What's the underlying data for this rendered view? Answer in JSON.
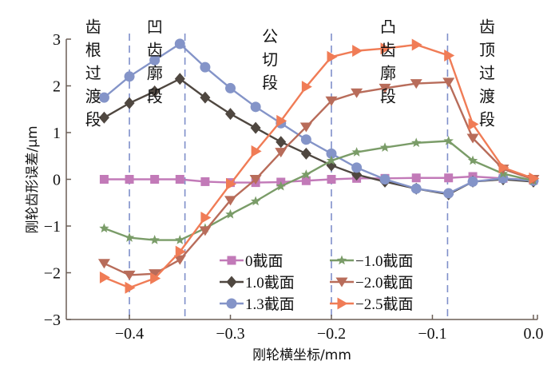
{
  "chart_data": {
    "type": "line",
    "title": "",
    "xlabel": "刚轮横坐标/mm",
    "ylabel": "刚轮齿形误差/μm",
    "xlim": [
      -0.4625,
      0.004
    ],
    "ylim": [
      -3,
      3
    ],
    "xticks": [
      -0.4,
      -0.3,
      -0.2,
      -0.1,
      0.0
    ],
    "xtick_labels": [
      "−0.4",
      "−0.3",
      "−0.2",
      "−0.1",
      "0.0"
    ],
    "yticks": [
      -3,
      -2,
      -1,
      0,
      1,
      2,
      3
    ],
    "ytick_labels": [
      "−3",
      "−2",
      "−1",
      "0",
      "1",
      "2",
      "3"
    ],
    "grid": false,
    "legend_placement": "bottom-center",
    "region_dividers": [
      -0.4,
      -0.345,
      -0.2,
      -0.085
    ],
    "region_labels": [
      {
        "text": "齿根过渡段",
        "x": -0.437,
        "y": 3.1
      },
      {
        "text": "凹齿廓段",
        "x": -0.376,
        "y": 3.1
      },
      {
        "text": "公切段",
        "x": -0.262,
        "y": 2.9
      },
      {
        "text": "凸齿廓段",
        "x": -0.145,
        "y": 3.1
      },
      {
        "text": "齿顶过渡段",
        "x": -0.047,
        "y": 3.1
      }
    ],
    "x": [
      -0.425,
      -0.4,
      -0.375,
      -0.35,
      -0.325,
      -0.3,
      -0.275,
      -0.25,
      -0.225,
      -0.2,
      -0.175,
      -0.147,
      -0.116,
      -0.084,
      -0.06,
      -0.03,
      0.0
    ],
    "series": [
      {
        "name": "0截面",
        "color": "#c27ab8",
        "marker": "square",
        "values": [
          0,
          0,
          0,
          0,
          -0.05,
          -0.07,
          -0.07,
          -0.06,
          -0.03,
          0,
          0.02,
          0.02,
          0.03,
          0.03,
          0.06,
          0.02,
          -0.02
        ]
      },
      {
        "name": "1.0截面",
        "color": "#4f4740",
        "marker": "diamond",
        "values": [
          1.32,
          1.63,
          1.88,
          2.15,
          1.75,
          1.4,
          1.1,
          0.8,
          0.55,
          0.3,
          0.1,
          -0.05,
          -0.2,
          -0.32,
          -0.05,
          0.0,
          -0.05
        ]
      },
      {
        "name": "1.3截面",
        "color": "#8494c8",
        "marker": "circle",
        "values": [
          1.75,
          2.2,
          2.55,
          2.9,
          2.4,
          1.95,
          1.55,
          1.2,
          0.85,
          0.55,
          0.25,
          0.0,
          -0.2,
          -0.3,
          -0.05,
          0.02,
          -0.03
        ]
      },
      {
        "name": "−1.0截面",
        "color": "#7a9c68",
        "marker": "star",
        "values": [
          -1.05,
          -1.25,
          -1.3,
          -1.3,
          -1.05,
          -0.75,
          -0.47,
          -0.15,
          0.1,
          0.4,
          0.58,
          0.68,
          0.78,
          0.82,
          0.4,
          0.12,
          -0.03
        ]
      },
      {
        "name": "−2.0截面",
        "color": "#b86c5a",
        "marker": "triangle-down",
        "values": [
          -1.8,
          -2.05,
          -2.02,
          -1.72,
          -1.1,
          -0.45,
          0.0,
          0.58,
          1.12,
          1.68,
          1.85,
          1.95,
          2.05,
          2.08,
          0.88,
          0.22,
          0.0
        ]
      },
      {
        "name": "−2.5截面",
        "color": "#f07c56",
        "marker": "triangle-right",
        "values": [
          -2.1,
          -2.32,
          -2.12,
          -1.55,
          -0.82,
          -0.1,
          0.6,
          1.25,
          1.98,
          2.62,
          2.75,
          2.8,
          2.88,
          2.65,
          1.18,
          0.25,
          0.02
        ]
      }
    ]
  }
}
